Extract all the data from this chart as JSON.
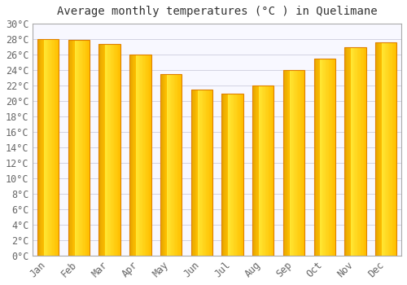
{
  "title": "Average monthly temperatures (°C ) in Quelimane",
  "months": [
    "Jan",
    "Feb",
    "Mar",
    "Apr",
    "May",
    "Jun",
    "Jul",
    "Aug",
    "Sep",
    "Oct",
    "Nov",
    "Dec"
  ],
  "values": [
    28.0,
    27.9,
    27.4,
    26.0,
    23.5,
    21.5,
    21.0,
    22.0,
    24.0,
    25.5,
    27.0,
    27.6
  ],
  "bar_color_main": "#FFB300",
  "bar_color_light": "#FFD966",
  "bar_edge_color": "#E08000",
  "background_color": "#FFFFFF",
  "plot_bg_color": "#F8F8FF",
  "grid_color": "#CCCCDD",
  "title_color": "#333333",
  "tick_color": "#666666",
  "ylim": [
    0,
    30
  ],
  "ytick_step": 2,
  "title_fontsize": 10,
  "tick_fontsize": 8.5
}
